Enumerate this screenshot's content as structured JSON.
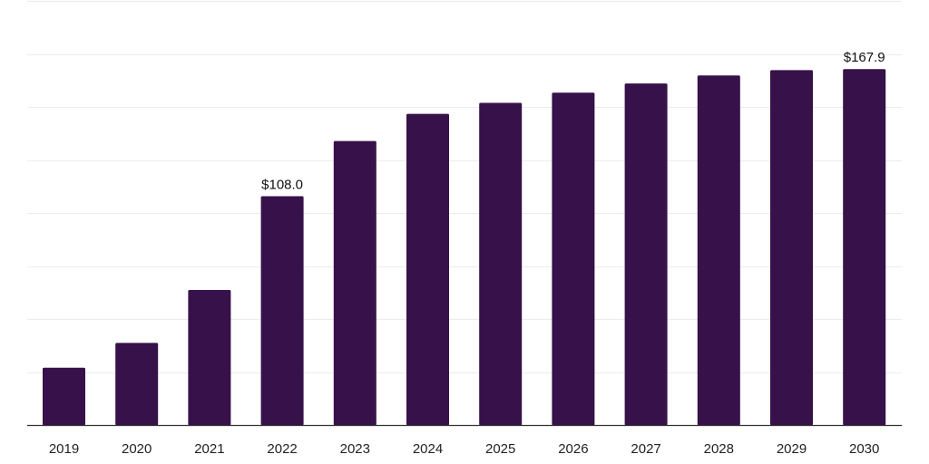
{
  "colors": {
    "bar": "#371149",
    "grid": "#ececec",
    "axis": "#333333",
    "text": "#222222"
  },
  "chart_data": {
    "type": "bar",
    "title": "",
    "xlabel": "",
    "ylabel": "",
    "grid": true,
    "ylim": [
      0,
      200
    ],
    "gridline_step": 25,
    "categories": [
      "2019",
      "2020",
      "2021",
      "2022",
      "2023",
      "2024",
      "2025",
      "2026",
      "2027",
      "2028",
      "2029",
      "2030"
    ],
    "values": [
      27.2,
      38.9,
      63.8,
      108.0,
      134.0,
      146.8,
      152.0,
      156.8,
      161.1,
      164.9,
      167.4,
      167.9
    ],
    "data_labels": [
      {
        "index": 3,
        "text": "$108.0"
      },
      {
        "index": 11,
        "text": "$167.9"
      }
    ]
  }
}
